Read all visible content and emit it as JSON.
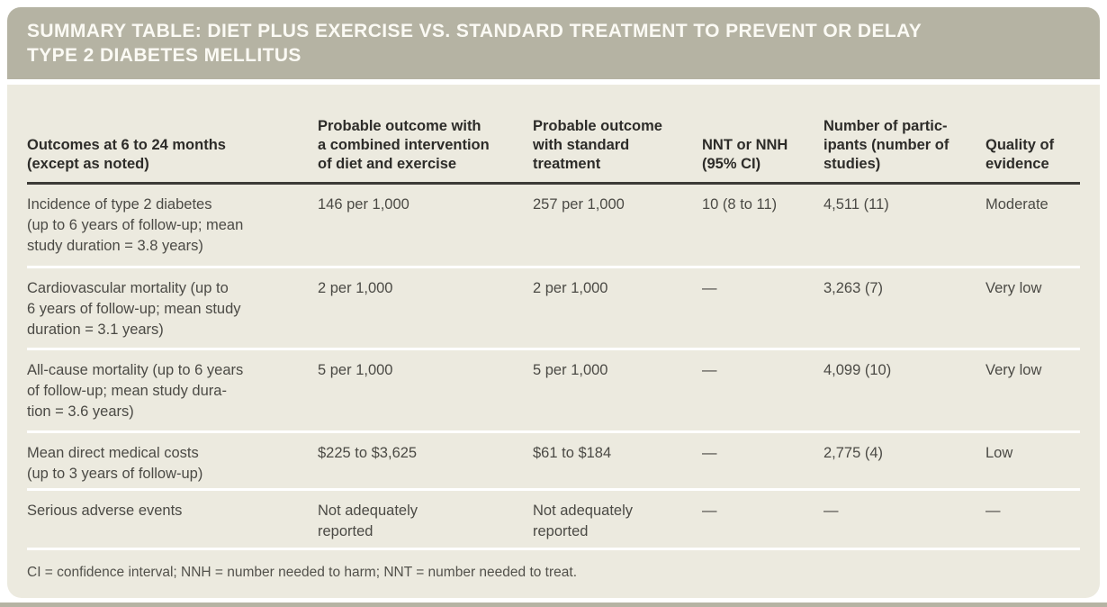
{
  "colors": {
    "header_green": "#b5b3a3",
    "card_beige": "#eceadf",
    "rule_dark": "#3c3b37",
    "title_text": "#fbfaf4",
    "body_text": "#4b4a45"
  },
  "header": {
    "title": "SUMMARY TABLE: DIET PLUS EXERCISE VS. STANDARD TREATMENT TO PREVENT OR DELAY\nTYPE 2 DIABETES MELLITUS"
  },
  "table": {
    "column_headers": [
      "Outcomes at 6 to 24 months\n(except as noted)",
      "Probable outcome with\na combined intervention\nof diet and exercise",
      "Probable outcome\nwith standard\ntreatment",
      "NNT or NNH\n(95% CI)",
      "Number of partic-\nipants (number of\nstudies)",
      "Quality of\nevidence"
    ],
    "rows": [
      {
        "outcome": "Incidence of type 2 diabetes\n(up to 6 years of follow-up; mean\nstudy duration = 3.8 years)",
        "combined": "146 per 1,000",
        "standard": "257 per 1,000",
        "nnt": "10 (8 to 11)",
        "participants": "4,511 (11)",
        "quality": "Moderate"
      },
      {
        "outcome": "Cardiovascular mortality (up to\n6 years of follow-up; mean study\nduration = 3.1 years)",
        "combined": "2 per 1,000",
        "standard": "2 per 1,000",
        "nnt": "—",
        "participants": "3,263 (7)",
        "quality": "Very low"
      },
      {
        "outcome": "All-cause mortality (up to 6 years\nof follow-up; mean study dura-\ntion = 3.6 years)",
        "combined": "5 per 1,000",
        "standard": "5 per 1,000",
        "nnt": "—",
        "participants": "4,099 (10)",
        "quality": "Very low"
      },
      {
        "outcome": "Mean direct medical costs\n(up to 3 years of follow-up)",
        "combined": "$225 to $3,625",
        "standard": "$61 to $184",
        "nnt": "—",
        "participants": "2,775 (4)",
        "quality": "Low"
      },
      {
        "outcome": "Serious adverse events",
        "combined": "Not adequately\nreported",
        "standard": "Not adequately\nreported",
        "nnt": "—",
        "participants": "—",
        "quality": "—"
      }
    ]
  },
  "footnote": "CI = confidence interval; NNH = number needed to harm; NNT = number needed to treat."
}
